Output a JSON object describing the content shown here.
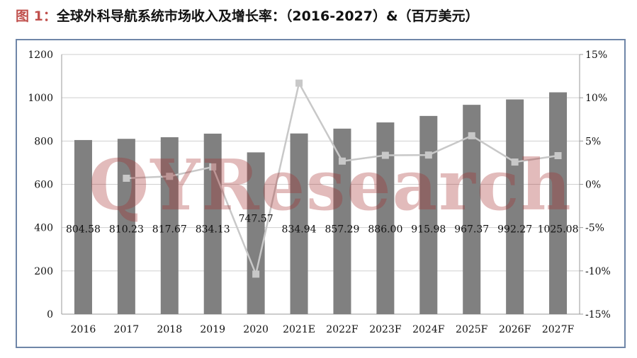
{
  "title": {
    "prefix": "图 1：",
    "text": "全球外科导航系统市场收入及增长率：（2016-2027）&（百万美元）"
  },
  "watermark": "QYResearch",
  "colors": {
    "bar": "#808080",
    "line": "#c8c8c8",
    "frame": "#6f86a8",
    "title_prefix": "#c0504d"
  },
  "chart_data": {
    "type": "bar",
    "categories": [
      "2016",
      "2017",
      "2018",
      "2019",
      "2020",
      "2021E",
      "2022F",
      "2023F",
      "2024F",
      "2025F",
      "2026F",
      "2027F"
    ],
    "series": [
      {
        "type": "bar",
        "axis": "left",
        "values": [
          804.58,
          810.23,
          817.67,
          834.13,
          747.57,
          834.94,
          857.29,
          886.0,
          915.98,
          967.37,
          992.27,
          1025.08
        ],
        "labels": [
          "804.58",
          "810.23",
          "817.67",
          "834.13",
          "747.57",
          "834.94",
          "857.29",
          "886.00",
          "915.98",
          "967.37",
          "992.27",
          "1025.08"
        ]
      },
      {
        "type": "line",
        "axis": "right",
        "values": [
          null,
          0.7,
          0.92,
          2.01,
          -10.38,
          11.69,
          2.68,
          3.35,
          3.38,
          5.61,
          2.57,
          3.31
        ]
      }
    ],
    "ylim": [
      0,
      1200
    ],
    "y_ticks": [
      "0",
      "200",
      "400",
      "600",
      "800",
      "1000",
      "1200"
    ],
    "y2lim": [
      -15,
      15
    ],
    "y2_ticks": [
      "-15%",
      "-10%",
      "-5%",
      "0%",
      "5%",
      "10%",
      "15%"
    ],
    "grid": true,
    "legend": "none"
  }
}
